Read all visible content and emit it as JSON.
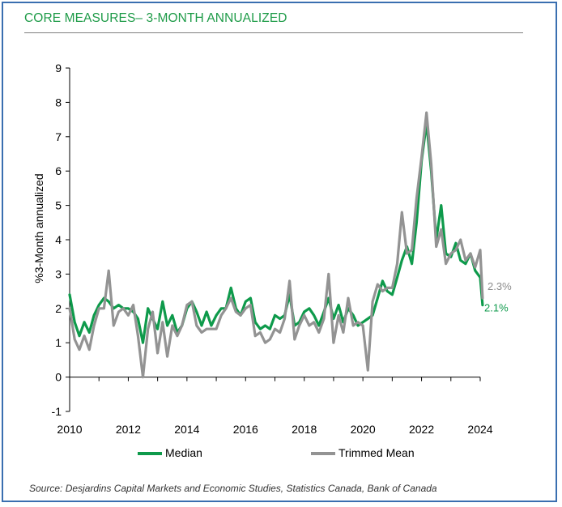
{
  "title": "CORE MEASURES– 3-MONTH ANNUALIZED",
  "source": "Source: Desjardins Capital Markets and Economic Studies, Statistics Canada, Bank of Canada",
  "chart_data": {
    "type": "line",
    "title": "CORE MEASURES– 3-MONTH ANNUALIZED",
    "xlabel": "",
    "ylabel": "%3-Month annualized",
    "xlim": [
      2010,
      2024.1
    ],
    "ylim": [
      -1,
      9
    ],
    "x_ticks": [
      "2010",
      "2012",
      "2014",
      "2016",
      "2018",
      "2020",
      "2022",
      "2024"
    ],
    "y_ticks": [
      "-1",
      "0",
      "1",
      "2",
      "3",
      "4",
      "5",
      "6",
      "7",
      "8",
      "9"
    ],
    "legend_position": "bottom",
    "series": [
      {
        "name": "Median",
        "color": "#0e9a4b",
        "end_label": "2.1%",
        "x": [
          2010.0,
          2010.17,
          2010.33,
          2010.5,
          2010.67,
          2010.83,
          2011.0,
          2011.17,
          2011.33,
          2011.5,
          2011.67,
          2011.83,
          2012.0,
          2012.17,
          2012.33,
          2012.5,
          2012.67,
          2012.83,
          2013.0,
          2013.17,
          2013.33,
          2013.5,
          2013.67,
          2013.83,
          2014.0,
          2014.17,
          2014.33,
          2014.5,
          2014.67,
          2014.83,
          2015.0,
          2015.17,
          2015.33,
          2015.5,
          2015.67,
          2015.83,
          2016.0,
          2016.17,
          2016.33,
          2016.5,
          2016.67,
          2016.83,
          2017.0,
          2017.17,
          2017.33,
          2017.5,
          2017.67,
          2017.83,
          2018.0,
          2018.17,
          2018.33,
          2018.5,
          2018.67,
          2018.83,
          2019.0,
          2019.17,
          2019.33,
          2019.5,
          2019.67,
          2019.83,
          2020.0,
          2020.17,
          2020.33,
          2020.5,
          2020.67,
          2020.83,
          2021.0,
          2021.17,
          2021.33,
          2021.5,
          2021.67,
          2021.83,
          2022.0,
          2022.17,
          2022.33,
          2022.5,
          2022.67,
          2022.83,
          2023.0,
          2023.17,
          2023.33,
          2023.5,
          2023.67,
          2023.83,
          2024.0,
          2024.08
        ],
        "values": [
          2.4,
          1.6,
          1.2,
          1.6,
          1.3,
          1.8,
          2.1,
          2.3,
          2.2,
          2.0,
          2.1,
          2.0,
          2.0,
          1.9,
          1.7,
          1.0,
          2.0,
          1.7,
          1.4,
          2.2,
          1.5,
          1.8,
          1.3,
          1.5,
          2.0,
          2.2,
          1.9,
          1.5,
          1.9,
          1.5,
          1.8,
          2.0,
          2.0,
          2.6,
          2.0,
          1.8,
          2.2,
          2.3,
          1.6,
          1.4,
          1.5,
          1.4,
          1.8,
          1.7,
          1.8,
          2.4,
          1.5,
          1.6,
          1.9,
          2.0,
          1.8,
          1.5,
          1.9,
          2.3,
          1.7,
          2.1,
          1.6,
          2.0,
          1.8,
          1.5,
          1.6,
          1.7,
          1.8,
          2.3,
          2.8,
          2.5,
          2.4,
          2.9,
          3.4,
          3.8,
          3.3,
          4.5,
          6.3,
          7.4,
          6.0,
          4.0,
          5.0,
          3.6,
          3.5,
          3.9,
          3.4,
          3.3,
          3.6,
          3.1,
          2.9,
          2.1
        ]
      },
      {
        "name": "Trimmed Mean",
        "color": "#939393",
        "end_label": "2.3%",
        "x": [
          2010.0,
          2010.17,
          2010.33,
          2010.5,
          2010.67,
          2010.83,
          2011.0,
          2011.17,
          2011.33,
          2011.5,
          2011.67,
          2011.83,
          2012.0,
          2012.17,
          2012.33,
          2012.5,
          2012.67,
          2012.83,
          2013.0,
          2013.17,
          2013.33,
          2013.5,
          2013.67,
          2013.83,
          2014.0,
          2014.17,
          2014.33,
          2014.5,
          2014.67,
          2014.83,
          2015.0,
          2015.17,
          2015.33,
          2015.5,
          2015.67,
          2015.83,
          2016.0,
          2016.17,
          2016.33,
          2016.5,
          2016.67,
          2016.83,
          2017.0,
          2017.17,
          2017.33,
          2017.5,
          2017.67,
          2017.83,
          2018.0,
          2018.17,
          2018.33,
          2018.5,
          2018.67,
          2018.83,
          2019.0,
          2019.17,
          2019.33,
          2019.5,
          2019.67,
          2019.83,
          2020.0,
          2020.17,
          2020.33,
          2020.5,
          2020.67,
          2020.83,
          2021.0,
          2021.17,
          2021.33,
          2021.5,
          2021.67,
          2021.83,
          2022.0,
          2022.17,
          2022.33,
          2022.5,
          2022.67,
          2022.83,
          2023.0,
          2023.17,
          2023.33,
          2023.5,
          2023.67,
          2023.83,
          2024.0,
          2024.08
        ],
        "values": [
          2.0,
          1.1,
          0.8,
          1.2,
          0.8,
          1.5,
          2.0,
          2.0,
          3.1,
          1.5,
          1.9,
          2.0,
          1.8,
          2.1,
          1.2,
          0.0,
          1.4,
          1.9,
          0.7,
          1.6,
          0.6,
          1.5,
          1.2,
          1.5,
          2.1,
          2.2,
          1.5,
          1.3,
          1.4,
          1.4,
          1.4,
          1.8,
          2.0,
          2.3,
          1.9,
          1.8,
          2.0,
          2.1,
          1.2,
          1.3,
          1.0,
          1.1,
          1.4,
          1.3,
          1.7,
          2.8,
          1.1,
          1.5,
          1.8,
          1.5,
          1.6,
          1.3,
          1.7,
          3.0,
          1.0,
          1.8,
          1.3,
          2.3,
          1.5,
          1.6,
          1.5,
          0.2,
          2.2,
          2.7,
          2.5,
          2.6,
          2.6,
          3.3,
          4.8,
          3.6,
          3.7,
          5.2,
          6.4,
          7.7,
          6.2,
          3.8,
          4.3,
          3.3,
          3.6,
          3.7,
          4.0,
          3.4,
          3.6,
          3.2,
          3.7,
          2.3
        ]
      }
    ]
  }
}
